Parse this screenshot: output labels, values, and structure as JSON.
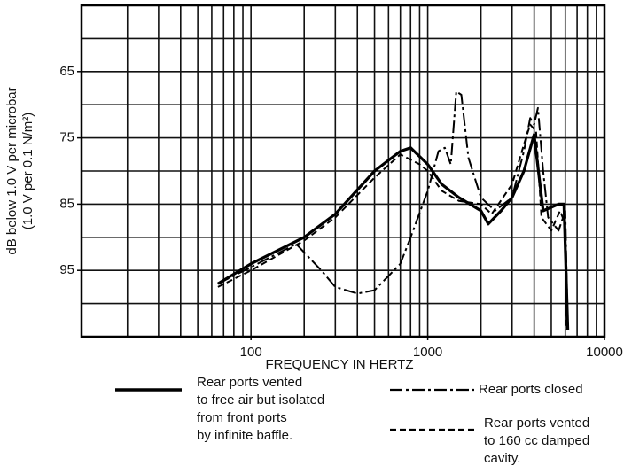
{
  "chart_data": {
    "type": "line",
    "xlabel": "FREQUENCY IN HERTZ",
    "ylabel": [
      "dB below 1.0 V per microbar",
      "(1.0 V per 0.1 N/m²)"
    ],
    "xscale": "log",
    "xlim": [
      11,
      10000
    ],
    "xticks": [
      100,
      1000,
      10000
    ],
    "xgrid": [
      20,
      30,
      40,
      50,
      60,
      70,
      80,
      90,
      100,
      200,
      300,
      400,
      500,
      600,
      700,
      800,
      900,
      1000,
      2000,
      3000,
      4000,
      5000,
      6000,
      7000,
      8000,
      9000
    ],
    "ylim": [
      105,
      55
    ],
    "yticks": [
      65,
      75,
      85,
      95
    ],
    "ygrid": [
      60,
      65,
      70,
      75,
      80,
      85,
      90,
      95,
      100
    ],
    "grid": true,
    "legend": "bottom",
    "series": [
      {
        "name": "Rear ports vented\nto free air but isolated\nfrom front ports\nby infinite baffle.",
        "color": "#000000",
        "style": "solid",
        "x": [
          65,
          100,
          200,
          300,
          500,
          700,
          800,
          1000,
          1200,
          1500,
          2000,
          2200,
          2600,
          3000,
          3500,
          4000,
          4500,
          5500,
          5900,
          6200
        ],
        "values": [
          97,
          94,
          90,
          86.5,
          80,
          77,
          76.5,
          79,
          82,
          84,
          86,
          88,
          86,
          84,
          80,
          74.5,
          86,
          85,
          85,
          104
        ]
      },
      {
        "name": "Rear ports closed",
        "color": "#000000",
        "style": "dashdot",
        "x": [
          65,
          100,
          180,
          250,
          300,
          400,
          500,
          700,
          800,
          1000,
          1150,
          1250,
          1350,
          1450,
          1550,
          1700,
          2000,
          2400,
          3000,
          3500,
          3800,
          4000,
          4200,
          4500,
          4800,
          5500,
          6000,
          6200
        ],
        "values": [
          97,
          94.5,
          91,
          95,
          97.5,
          98.5,
          98,
          94,
          90,
          83,
          77,
          76.5,
          79,
          68,
          68.5,
          78,
          84,
          86,
          84,
          77,
          72,
          73,
          70.5,
          80,
          87,
          89,
          86,
          104
        ]
      },
      {
        "name": "Rear ports vented\nto 160 cc damped\ncavity.",
        "color": "#000000",
        "style": "dashed",
        "x": [
          65,
          100,
          200,
          300,
          500,
          700,
          900,
          1000,
          1200,
          1500,
          2000,
          2300,
          3000,
          3500,
          3800,
          4100,
          4400,
          5000,
          5600,
          6000,
          6100
        ],
        "values": [
          97.5,
          95,
          90.5,
          87,
          81,
          77.5,
          79,
          80,
          83,
          84.5,
          85,
          86.5,
          82,
          76,
          73,
          74,
          87,
          89,
          86,
          88,
          104
        ]
      }
    ]
  }
}
